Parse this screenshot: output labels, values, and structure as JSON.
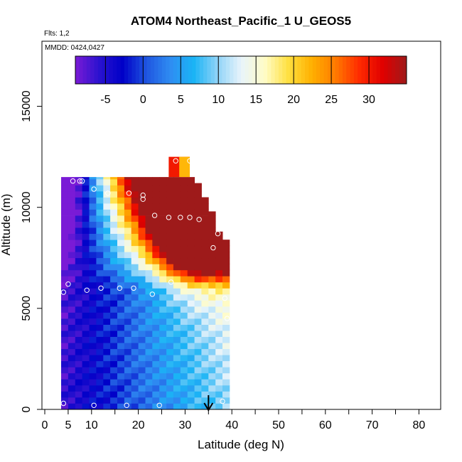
{
  "chart_data": {
    "type": "heatmap",
    "title": "ATOM4 Northeast_Pacific_1 U_GEOS5",
    "flights_label": "Flts: 1,2",
    "dates_label": "MMDD: 0424,0427",
    "xlabel": "Latitude (deg N)",
    "ylabel": "Altitude (m)",
    "xlim": [
      0,
      85
    ],
    "ylim": [
      0,
      17500
    ],
    "x_ticks": [
      0,
      5,
      10,
      20,
      30,
      40,
      50,
      60,
      70,
      80
    ],
    "x_minor_ticks": [
      15,
      25,
      35,
      45,
      55,
      65,
      75,
      85
    ],
    "y_ticks": [
      0,
      5000,
      10000,
      15000
    ],
    "colorbar": {
      "range": [
        -9,
        35
      ],
      "ticks": [
        -5,
        0,
        5,
        10,
        15,
        20,
        25,
        30
      ],
      "colors": [
        "#7a1bd6",
        "#2a12cf",
        "#0000c8",
        "#1f55e0",
        "#2f8cf2",
        "#1ab4f5",
        "#8fd3f8",
        "#e8f4fb",
        "#fffcc8",
        "#ffe040",
        "#ffb000",
        "#ff7a00",
        "#ff2a00",
        "#e00000",
        "#9e1a1a"
      ]
    },
    "arrow_marker": {
      "x": 35
    },
    "column_x_edges": [
      3.5,
      5,
      6.5,
      8,
      9.5,
      11,
      12.5,
      14,
      15.5,
      17,
      18.5,
      20,
      21.5,
      23,
      24.5,
      26,
      27.5,
      29,
      30.5,
      32,
      33.5,
      35,
      36.5,
      38,
      39.5
    ],
    "row_height": 300,
    "wind_field_cells": {
      "top_altitude_by_column": [
        11500,
        11500,
        11500,
        11500,
        11500,
        11500,
        11500,
        11500,
        11500,
        11500,
        11500,
        11500,
        11500,
        11500,
        11500,
        11500,
        11500,
        11500,
        11500,
        11200,
        10500,
        9800,
        8800,
        8400
      ],
      "core_latitude": 32,
      "core_altitude": 9500
    },
    "upper_block": {
      "x": [
        26.5,
        31
      ],
      "y": [
        11500,
        12500
      ],
      "value": 30
    },
    "sample_points": [
      {
        "x": 4,
        "y": 300
      },
      {
        "x": 10.5,
        "y": 200
      },
      {
        "x": 17.5,
        "y": 200
      },
      {
        "x": 24.5,
        "y": 200
      },
      {
        "x": 38,
        "y": 400
      },
      {
        "x": 4,
        "y": 5800
      },
      {
        "x": 5,
        "y": 6200
      },
      {
        "x": 9,
        "y": 5900
      },
      {
        "x": 12,
        "y": 6000
      },
      {
        "x": 16,
        "y": 6000
      },
      {
        "x": 19,
        "y": 6000
      },
      {
        "x": 23,
        "y": 5700
      },
      {
        "x": 27,
        "y": 6300
      },
      {
        "x": 38.5,
        "y": 5500
      },
      {
        "x": 39,
        "y": 4500
      },
      {
        "x": 6,
        "y": 11300
      },
      {
        "x": 7.5,
        "y": 11300
      },
      {
        "x": 8,
        "y": 11300
      },
      {
        "x": 10.5,
        "y": 10900
      },
      {
        "x": 13.5,
        "y": 10700
      },
      {
        "x": 18,
        "y": 10700
      },
      {
        "x": 21,
        "y": 10600
      },
      {
        "x": 21,
        "y": 10400
      },
      {
        "x": 23.5,
        "y": 9600
      },
      {
        "x": 26.5,
        "y": 9500
      },
      {
        "x": 29,
        "y": 9500
      },
      {
        "x": 31,
        "y": 9500
      },
      {
        "x": 33,
        "y": 9400
      },
      {
        "x": 37,
        "y": 8700
      },
      {
        "x": 36,
        "y": 8000
      },
      {
        "x": 28,
        "y": 12300
      },
      {
        "x": 31,
        "y": 12300
      }
    ]
  }
}
